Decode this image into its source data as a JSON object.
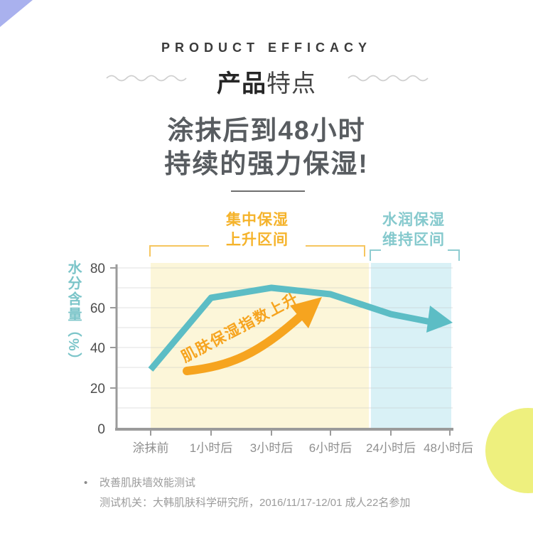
{
  "page": {
    "eyebrow": "PRODUCT EFFICACY",
    "section_title_bold": "产品",
    "section_title_light": "特点",
    "headline_line1": "涂抹后到48小时",
    "headline_line2": "持续的强力保湿!"
  },
  "chart_data": {
    "type": "line",
    "x_labels": [
      "涂抹前",
      "1小时后",
      "3小时后",
      "6小时后",
      "24小时后",
      "48小时后"
    ],
    "series": [
      {
        "name": "水分含量",
        "values": [
          29,
          65,
          70,
          67,
          57,
          53
        ],
        "color": "#5cbdc5"
      }
    ],
    "y_axis_title": "水分含量（%）",
    "y_tick_labels": [
      "80",
      "60",
      "40",
      "20",
      "0"
    ],
    "ylim": [
      0,
      80
    ],
    "grid": true,
    "regions": [
      {
        "label_line1": "集中保湿",
        "label_line2": "上升区间",
        "x_start_index": 0,
        "x_end_index": 4,
        "band_color": "#fcf6d9",
        "accent_color": "#f5b32b"
      },
      {
        "label_line1": "水润保湿",
        "label_line2": "维持区间",
        "x_start_index": 4,
        "x_end_index": 5,
        "band_color": "#d9f1f6",
        "accent_color": "#85c9cd"
      }
    ],
    "annotation": "肌肤保湿指数上升",
    "annotation_color": "#f6a41f"
  },
  "footnote": {
    "bullet": "•",
    "line1": "改善肌肤墙效能测试",
    "line2": "测试机关：大韩肌肤科学研究所，2016/11/17-12/01 成人22名参加"
  },
  "decor": {
    "corner_color": "#a9b1ee",
    "circle_color": "#eef07e"
  }
}
